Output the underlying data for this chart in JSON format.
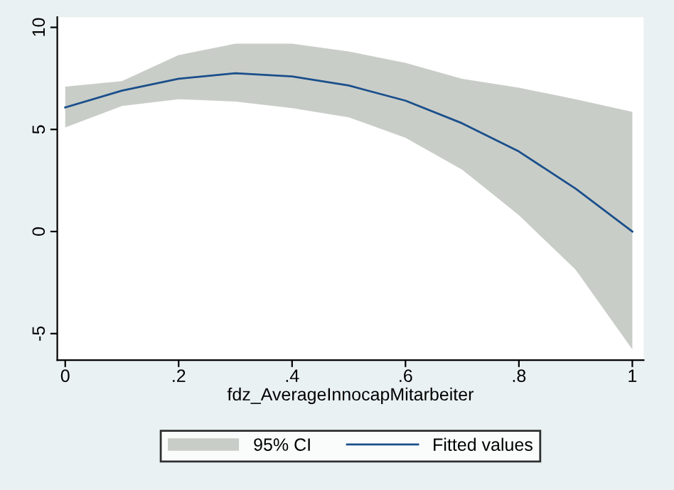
{
  "chart_data": {
    "type": "line",
    "xlabel": "fdz_AverageInnocapMitarbeiter",
    "x": [
      0,
      0.1,
      0.2,
      0.3,
      0.4,
      0.5,
      0.6,
      0.7,
      0.8,
      0.9,
      1
    ],
    "series": [
      {
        "name": "Fitted values",
        "type": "line",
        "color": "#1a4f8b",
        "values": [
          6.08,
          6.9,
          7.48,
          7.75,
          7.6,
          7.15,
          6.41,
          5.3,
          3.92,
          2.1,
          0.0
        ],
        "lower": [
          5.1,
          6.15,
          6.48,
          6.37,
          6.04,
          5.59,
          4.59,
          3.03,
          0.8,
          -1.87,
          -5.77
        ],
        "upper": [
          7.1,
          7.37,
          8.64,
          9.2,
          9.2,
          8.82,
          8.26,
          7.48,
          7.04,
          6.48,
          5.86
        ]
      }
    ],
    "annotations": [
      "95% CI"
    ],
    "xlim": [
      -0.014,
      1.02
    ],
    "ylim": [
      -6.3,
      10.5
    ],
    "xticks": [
      {
        "value": 0,
        "label": "0"
      },
      {
        "value": 0.2,
        "label": ".2"
      },
      {
        "value": 0.4,
        "label": ".4"
      },
      {
        "value": 0.6,
        "label": ".6"
      },
      {
        "value": 0.8,
        "label": ".8"
      },
      {
        "value": 1,
        "label": "1"
      }
    ],
    "yticks": [
      -5,
      0,
      5,
      10
    ],
    "grid": false,
    "legend": "bottom"
  }
}
